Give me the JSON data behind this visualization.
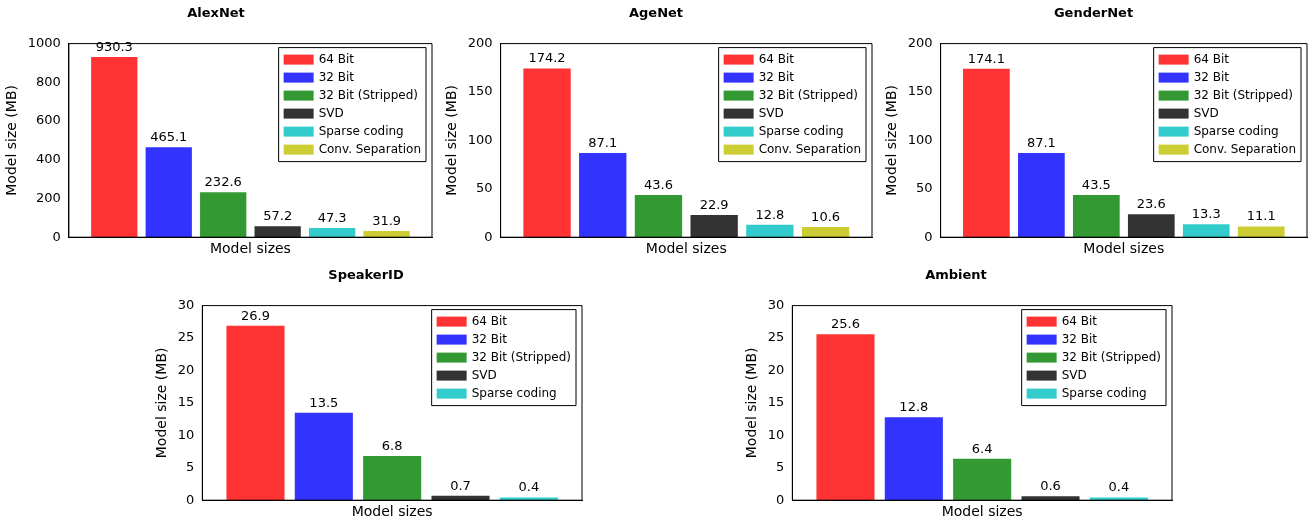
{
  "chart_data": [
    {
      "type": "bar",
      "title": "AlexNet",
      "xlabel": "Model sizes",
      "ylabel": "Model size (MB)",
      "categories": [
        null
      ],
      "ylim": [
        0,
        1000
      ],
      "yticks": [
        0,
        200,
        400,
        600,
        800,
        1000
      ],
      "grid": false,
      "legend": "top right",
      "tick_labels": "y",
      "data_labels": true,
      "series": [
        {
          "name": "64 Bit",
          "color": "#ff3333",
          "values": [
            930.3
          ]
        },
        {
          "name": "32 Bit",
          "color": "#3333ff",
          "values": [
            465.1
          ]
        },
        {
          "name": "32 Bit (Stripped)",
          "color": "#339933",
          "values": [
            232.6
          ]
        },
        {
          "name": "SVD",
          "color": "#333333",
          "values": [
            57.2
          ]
        },
        {
          "name": "Sparse coding",
          "color": "#33cccc",
          "values": [
            47.3
          ]
        },
        {
          "name": "Conv. Separation",
          "color": "#cccc33",
          "values": [
            31.9
          ]
        }
      ]
    },
    {
      "type": "bar",
      "title": "AgeNet",
      "xlabel": "Model sizes",
      "ylabel": "Model size (MB)",
      "categories": [
        null
      ],
      "ylim": [
        0,
        200
      ],
      "yticks": [
        0,
        50,
        100,
        150,
        200
      ],
      "grid": false,
      "legend": "top right",
      "tick_labels": "y",
      "data_labels": true,
      "series": [
        {
          "name": "64 Bit",
          "color": "#ff3333",
          "values": [
            174.2
          ]
        },
        {
          "name": "32 Bit",
          "color": "#3333ff",
          "values": [
            87.1
          ]
        },
        {
          "name": "32 Bit (Stripped)",
          "color": "#339933",
          "values": [
            43.6
          ]
        },
        {
          "name": "SVD",
          "color": "#333333",
          "values": [
            22.9
          ]
        },
        {
          "name": "Sparse coding",
          "color": "#33cccc",
          "values": [
            12.8
          ]
        },
        {
          "name": "Conv. Separation",
          "color": "#cccc33",
          "values": [
            10.6
          ]
        }
      ]
    },
    {
      "type": "bar",
      "title": "GenderNet",
      "xlabel": "Model sizes",
      "ylabel": "Model size (MB)",
      "categories": [
        null
      ],
      "ylim": [
        0,
        200
      ],
      "yticks": [
        0,
        50,
        100,
        150,
        200
      ],
      "grid": false,
      "legend": "top right",
      "tick_labels": "y",
      "data_labels": true,
      "series": [
        {
          "name": "64 Bit",
          "color": "#ff3333",
          "values": [
            174.1
          ]
        },
        {
          "name": "32 Bit",
          "color": "#3333ff",
          "values": [
            87.1
          ]
        },
        {
          "name": "32 Bit (Stripped)",
          "color": "#339933",
          "values": [
            43.5
          ]
        },
        {
          "name": "SVD",
          "color": "#333333",
          "values": [
            23.6
          ]
        },
        {
          "name": "Sparse coding",
          "color": "#33cccc",
          "values": [
            13.3
          ]
        },
        {
          "name": "Conv. Separation",
          "color": "#cccc33",
          "values": [
            11.1
          ]
        }
      ]
    },
    {
      "type": "bar",
      "title": "SpeakerID",
      "xlabel": "Model sizes",
      "ylabel": "Model size (MB)",
      "categories": [
        null
      ],
      "ylim": [
        0,
        30
      ],
      "yticks": [
        0,
        5,
        10,
        15,
        20,
        25,
        30
      ],
      "grid": false,
      "legend": "top right",
      "tick_labels": "y",
      "data_labels": true,
      "series": [
        {
          "name": "64 Bit",
          "color": "#ff3333",
          "values": [
            26.9
          ]
        },
        {
          "name": "32 Bit",
          "color": "#3333ff",
          "values": [
            13.5
          ]
        },
        {
          "name": "32 Bit (Stripped)",
          "color": "#339933",
          "values": [
            6.8
          ]
        },
        {
          "name": "SVD",
          "color": "#333333",
          "values": [
            0.7
          ]
        },
        {
          "name": "Sparse coding",
          "color": "#33cccc",
          "values": [
            0.4
          ]
        }
      ]
    },
    {
      "type": "bar",
      "title": "Ambient",
      "xlabel": "Model sizes",
      "ylabel": "Model size (MB)",
      "categories": [
        null
      ],
      "ylim": [
        0,
        30
      ],
      "yticks": [
        0,
        5,
        10,
        15,
        20,
        25,
        30
      ],
      "grid": false,
      "legend": "top right",
      "tick_labels": "y",
      "data_labels": true,
      "series": [
        {
          "name": "64 Bit",
          "color": "#ff3333",
          "values": [
            25.6
          ]
        },
        {
          "name": "32 Bit",
          "color": "#3333ff",
          "values": [
            12.8
          ]
        },
        {
          "name": "32 Bit (Stripped)",
          "color": "#339933",
          "values": [
            6.4
          ]
        },
        {
          "name": "SVD",
          "color": "#333333",
          "values": [
            0.6
          ]
        },
        {
          "name": "Sparse coding",
          "color": "#33cccc",
          "values": [
            0.4
          ]
        }
      ]
    }
  ]
}
